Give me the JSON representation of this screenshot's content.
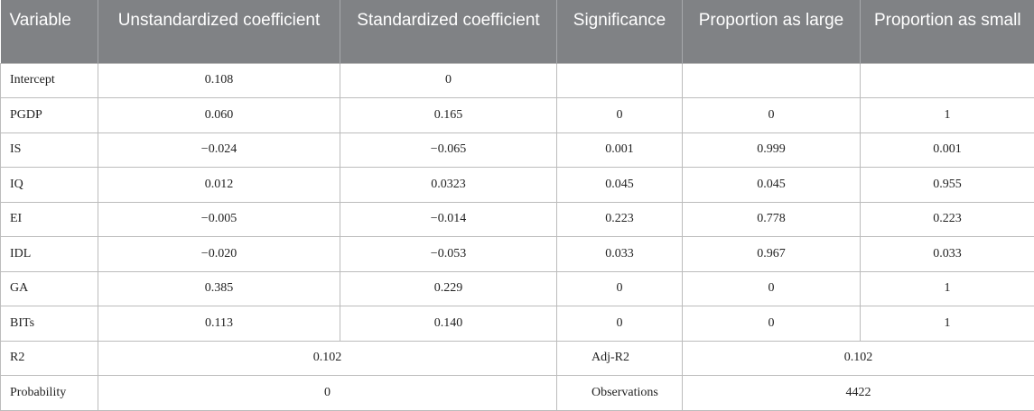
{
  "headers": [
    "Variable",
    "Unstandardized coefficient",
    "Standardized coefficient",
    "Significance",
    "Proportion as large",
    "Proportion as small"
  ],
  "rows": [
    {
      "variable": "Intercept",
      "unstd": "0.108",
      "std": "0",
      "sig": "",
      "large": "",
      "small": ""
    },
    {
      "variable": "PGDP",
      "unstd": "0.060",
      "std": "0.165",
      "sig": "0",
      "large": "0",
      "small": "1"
    },
    {
      "variable": "IS",
      "unstd": "−0.024",
      "std": "−0.065",
      "sig": "0.001",
      "large": "0.999",
      "small": "0.001"
    },
    {
      "variable": "IQ",
      "unstd": "0.012",
      "std": "0.0323",
      "sig": "0.045",
      "large": "0.045",
      "small": "0.955"
    },
    {
      "variable": "EI",
      "unstd": "−0.005",
      "std": "−0.014",
      "sig": "0.223",
      "large": "0.778",
      "small": "0.223"
    },
    {
      "variable": "IDL",
      "unstd": "−0.020",
      "std": "−0.053",
      "sig": "0.033",
      "large": "0.967",
      "small": "0.033"
    },
    {
      "variable": "GA",
      "unstd": "0.385",
      "std": "0.229",
      "sig": "0",
      "large": "0",
      "small": "1"
    },
    {
      "variable": "BITs",
      "unstd": "0.113",
      "std": "0.140",
      "sig": "0",
      "large": "0",
      "small": "1"
    }
  ],
  "summary": [
    {
      "label": "R2",
      "value": "0.102",
      "label2": "Adj-R2",
      "value2": "0.102"
    },
    {
      "label": "Probability",
      "value": "0",
      "label2": "Observations",
      "value2": "4422"
    }
  ]
}
